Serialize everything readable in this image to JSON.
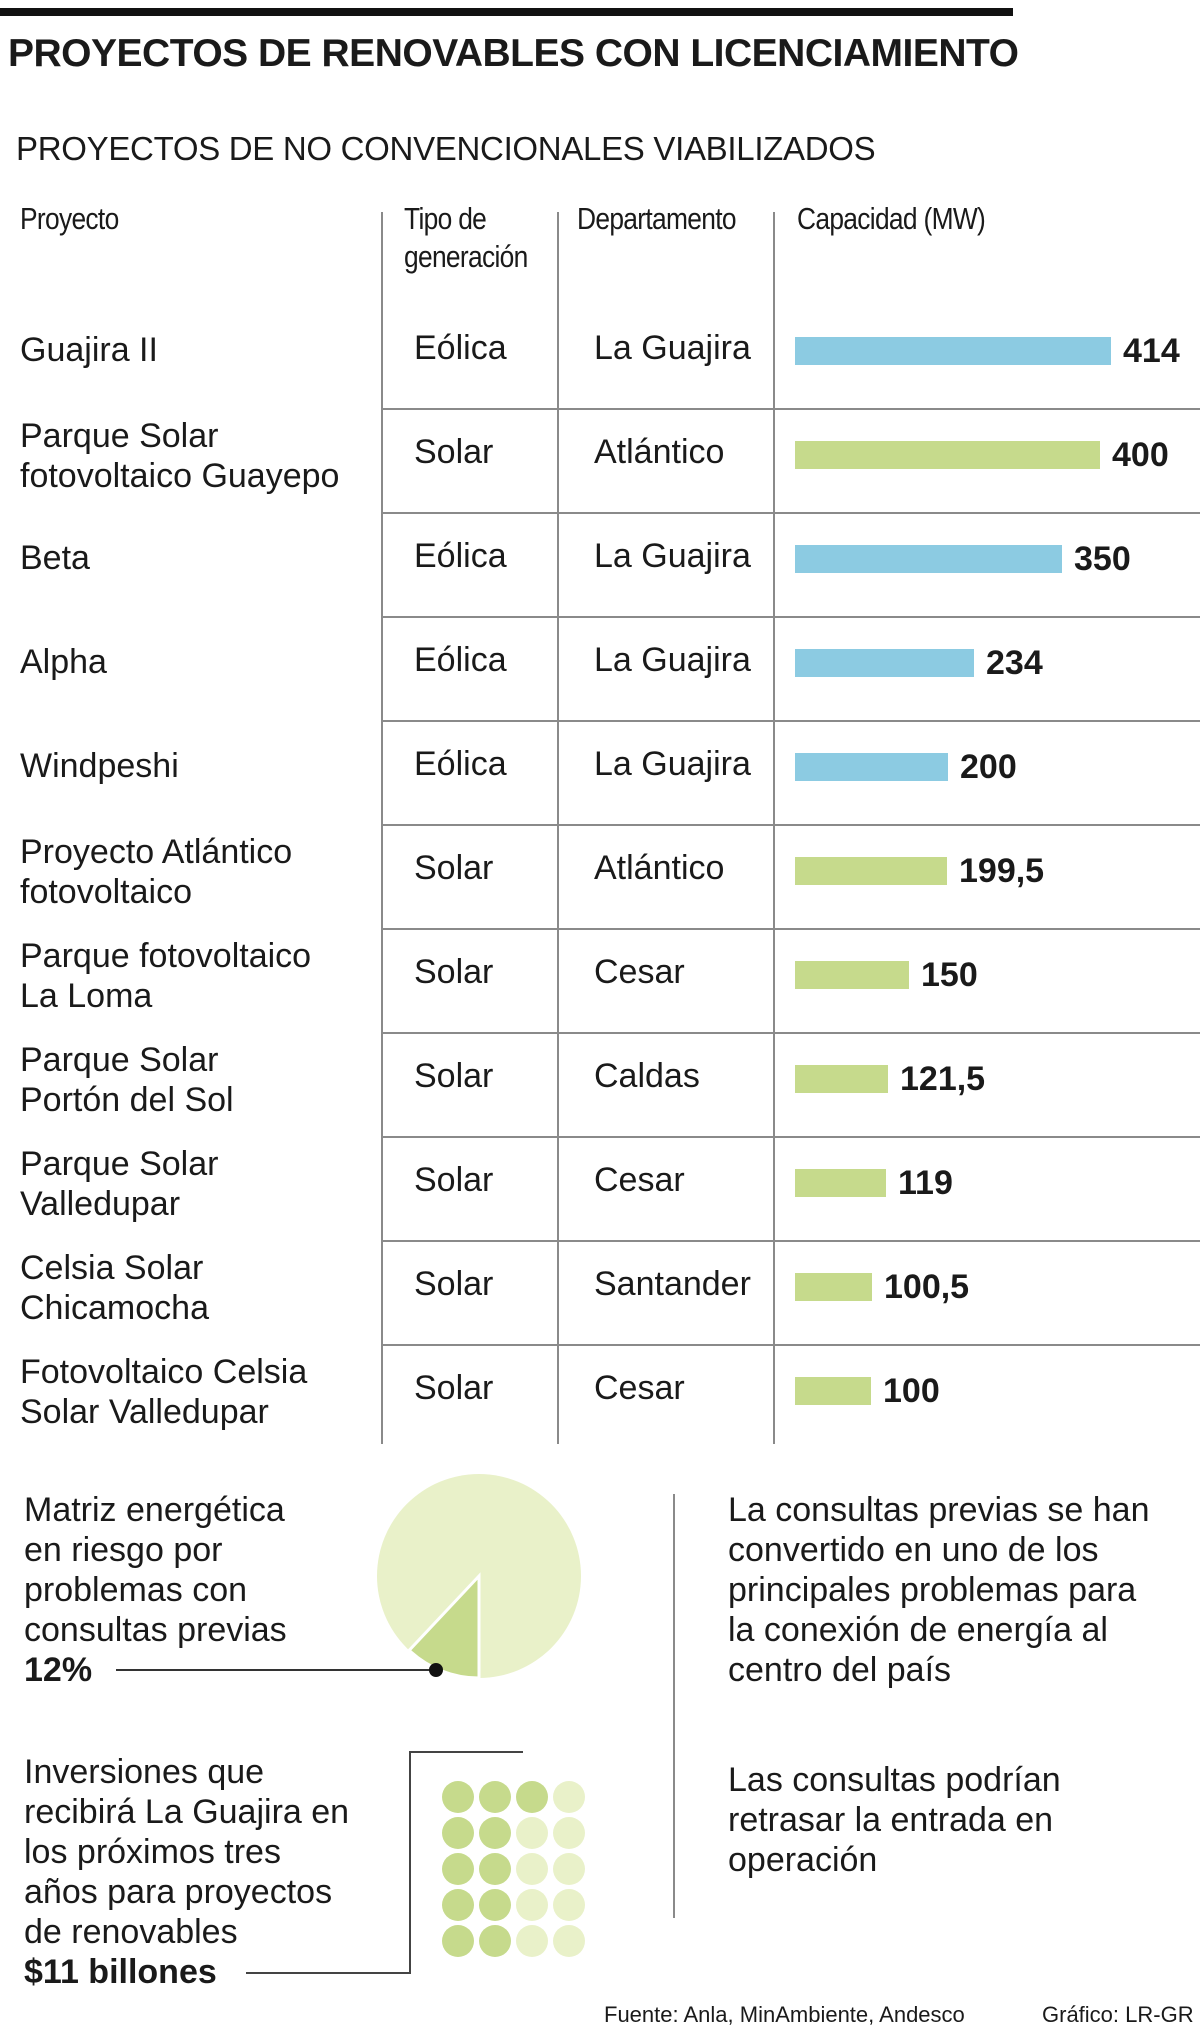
{
  "title": "PROYECTOS DE RENOVABLES CON LICENCIAMIENTO",
  "subtitle": "PROYECTOS DE NO CONVENCIONALES VIABILIZADOS",
  "headers": {
    "proyecto": "Proyecto",
    "tipo_l1": "Tipo de",
    "tipo_l2": "generación",
    "departamento": "Departamento",
    "capacidad": "Capacidad (MW)"
  },
  "colors": {
    "eolica": "#8ccbe2",
    "solar": "#c6da8c",
    "pie_light": "#e9f1c9",
    "pie_dark": "#c6da8c",
    "dot_dark": "#c6da8c",
    "dot_light": "#e9f1c9"
  },
  "rows": [
    {
      "l1": "Guajira II",
      "l2": "",
      "tipo": "Eólica",
      "dep": "La Guajira",
      "val": "414"
    },
    {
      "l1": "Parque Solar",
      "l2": "fotovoltaico Guayepo",
      "tipo": "Solar",
      "dep": "Atlántico",
      "val": "400"
    },
    {
      "l1": "Beta",
      "l2": "",
      "tipo": "Eólica",
      "dep": "La Guajira",
      "val": "350"
    },
    {
      "l1": "Alpha",
      "l2": "",
      "tipo": "Eólica",
      "dep": "La Guajira",
      "val": "234"
    },
    {
      "l1": "Windpeshi",
      "l2": "",
      "tipo": "Eólica",
      "dep": "La Guajira",
      "val": "200"
    },
    {
      "l1": "Proyecto Atlántico",
      "l2": "fotovoltaico",
      "tipo": "Solar",
      "dep": "Atlántico",
      "val": "199,5"
    },
    {
      "l1": "Parque fotovoltaico",
      "l2": "La Loma",
      "tipo": "Solar",
      "dep": "Cesar",
      "val": "150"
    },
    {
      "l1": "Parque Solar",
      "l2": "Portón del Sol",
      "tipo": "Solar",
      "dep": "Caldas",
      "val": "121,5"
    },
    {
      "l1": "Parque Solar",
      "l2": "Valledupar",
      "tipo": "Solar",
      "dep": "Cesar",
      "val": "119"
    },
    {
      "l1": "Celsia Solar",
      "l2": "Chicamocha",
      "tipo": "Solar",
      "dep": "Santander",
      "val": "100,5"
    },
    {
      "l1": "Fotovoltaico Celsia",
      "l2": "Solar Valledupar",
      "tipo": "Solar",
      "dep": "Cesar",
      "val": "100"
    }
  ],
  "chart_data": [
    {
      "type": "bar",
      "categories": [
        "Guajira II",
        "Parque Solar fotovoltaico Guayepo",
        "Beta",
        "Alpha",
        "Windpeshi",
        "Proyecto Atlántico fotovoltaico",
        "Parque fotovoltaico La Loma",
        "Parque Solar Portón del Sol",
        "Parque Solar Valledupar",
        "Celsia Solar Chicamocha",
        "Fotovoltaico Celsia Solar Valledupar"
      ],
      "values": [
        414,
        400,
        350,
        234,
        200,
        199.5,
        150,
        121.5,
        119,
        100.5,
        100
      ],
      "tipo": [
        "Eólica",
        "Solar",
        "Eólica",
        "Eólica",
        "Eólica",
        "Solar",
        "Solar",
        "Solar",
        "Solar",
        "Solar",
        "Solar"
      ],
      "ylabel": "Capacidad (MW)",
      "orientation": "horizontal"
    },
    {
      "type": "pie",
      "values": [
        12,
        88
      ],
      "highlight_percent": 12
    }
  ],
  "pie_block": {
    "lines": [
      "Matriz energética",
      "en riesgo por",
      "problemas con",
      "consultas previas"
    ],
    "value": "12%"
  },
  "invest_block": {
    "lines": [
      "Inversiones que",
      "recibirá La Guajira en",
      "los próximos tres",
      "años para proyectos",
      "de renovables"
    ],
    "value": "$11 billones",
    "dots": [
      [
        1,
        1,
        1,
        0
      ],
      [
        1,
        1,
        0,
        0
      ],
      [
        1,
        1,
        0,
        0
      ],
      [
        1,
        1,
        0,
        0
      ],
      [
        1,
        1,
        0,
        0
      ]
    ]
  },
  "right_block1": [
    "La consultas previas se han",
    "convertido en uno de los",
    "principales problemas para",
    "la conexión de energía al",
    "centro del país"
  ],
  "right_block2": [
    "Las consultas podrían",
    "retrasar la entrada en",
    "operación"
  ],
  "source": "Fuente: Anla, MinAmbiente, Andesco",
  "credit": "Gráfico: LR-GR"
}
